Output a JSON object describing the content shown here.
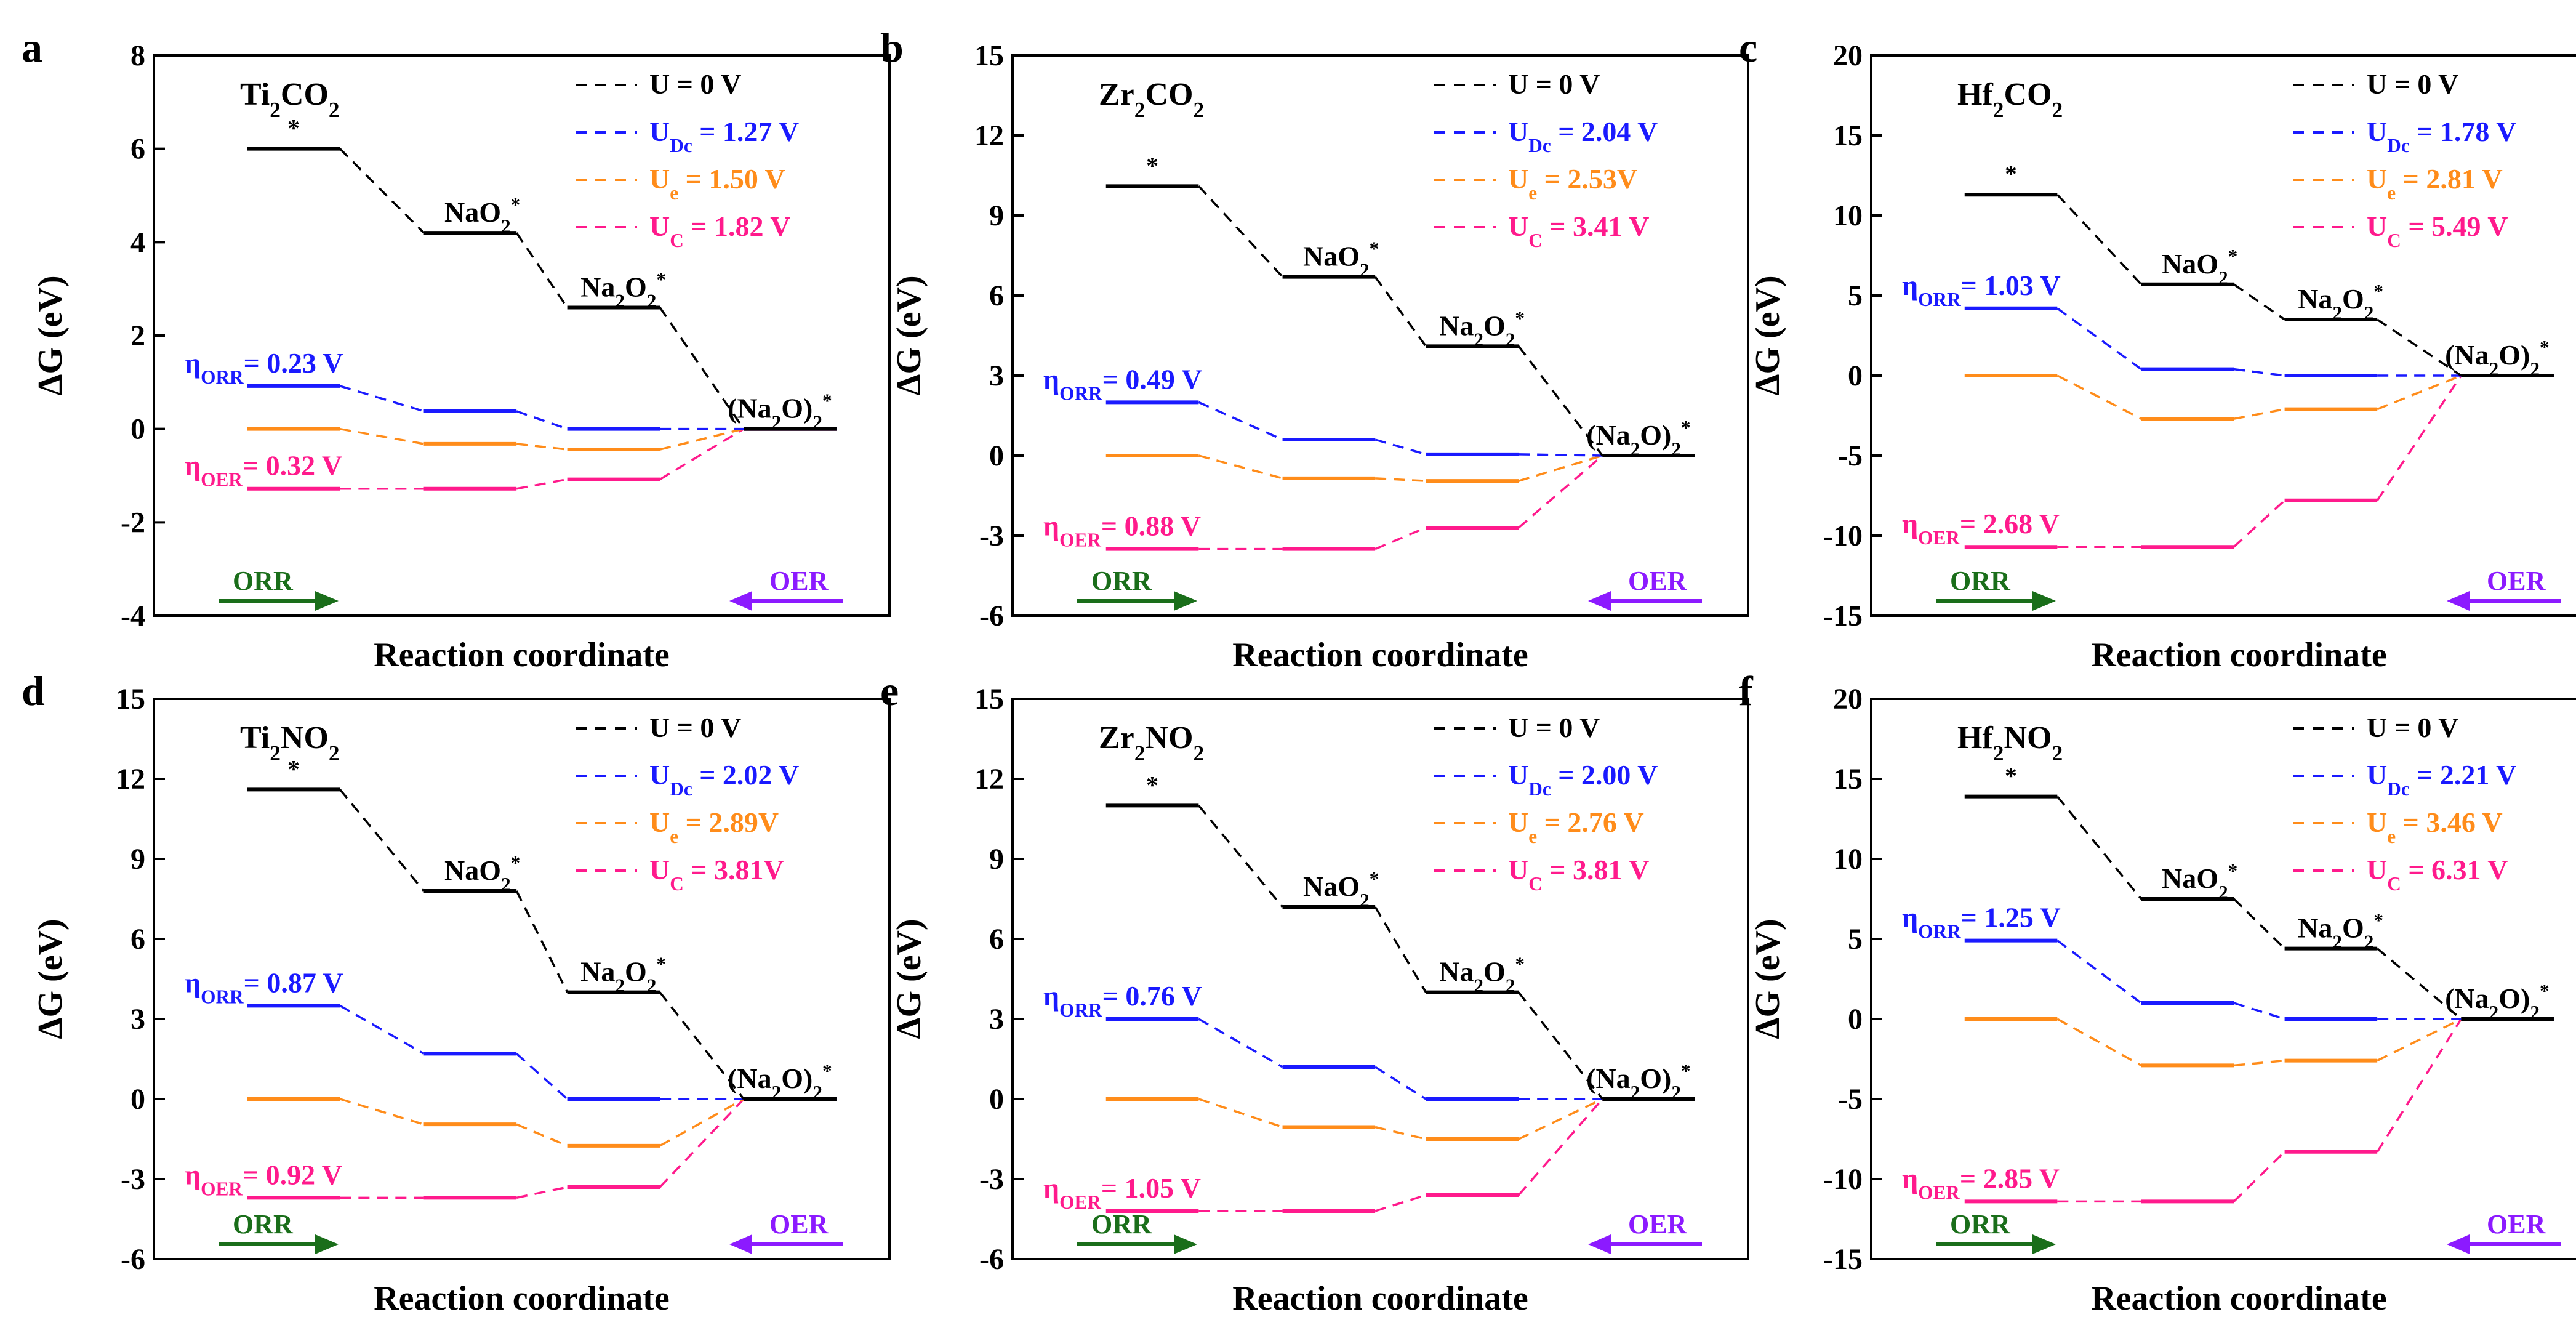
{
  "figure": {
    "xlabel": "Reaction coordinate",
    "ylabel": "ΔG (eV)",
    "state_labels": [
      "*",
      "NaO",
      "Na",
      "O",
      "(Na",
      "O)",
      "*"
    ],
    "ylabel_parts": [
      "ΔG (eV)"
    ],
    "eta_orr_prefix": "η",
    "eta_orr_sub": "ORR",
    "eta_oer_sub": "OER",
    "orr_arrow": "ORR",
    "oer_arrow": "OER",
    "colors": {
      "u0": "#000000",
      "udc": "#1a1aff",
      "ue": "#ff8c1a",
      "uc": "#ff1a8c",
      "orr": "#1a6e1a",
      "oer": "#8c1aff"
    }
  },
  "chart_data": [
    {
      "type": "line",
      "panel": "a",
      "material": {
        "base": "Ti",
        "sub1": "2",
        "mid": "CO",
        "sub2": "2"
      },
      "ylim": [
        -4,
        8
      ],
      "yticks": [
        -4,
        -2,
        0,
        2,
        4,
        6,
        8
      ],
      "xlabel": "Reaction coordinate",
      "ylabel": "ΔG (eV)",
      "categories": [
        "*",
        "NaO2*",
        "Na2O2*",
        "(Na2O)2*"
      ],
      "series": [
        {
          "name": "U = 0 V",
          "key": "u0",
          "main": "U = 0 V",
          "sub": "",
          "tail": "",
          "values": [
            6.0,
            4.2,
            2.6,
            0.0
          ]
        },
        {
          "name": "UDc = 1.27 V",
          "key": "udc",
          "main": "U",
          "sub": "Dc",
          "tail": " = 1.27 V",
          "values": [
            0.92,
            0.38,
            0.0,
            0.0
          ]
        },
        {
          "name": "Ue = 1.50 V",
          "key": "ue",
          "main": "U",
          "sub": "e",
          "tail": " = 1.50 V",
          "values": [
            0.0,
            -0.32,
            -0.44,
            0.0
          ]
        },
        {
          "name": "UC = 1.82 V",
          "key": "uc",
          "main": "U",
          "sub": "C",
          "tail": " = 1.82 V",
          "values": [
            -1.28,
            -1.28,
            -1.08,
            0.0
          ]
        }
      ],
      "eta_orr": "= 0.23 V",
      "eta_oer": "= 0.32 V"
    },
    {
      "type": "line",
      "panel": "b",
      "material": {
        "base": "Zr",
        "sub1": "2",
        "mid": "CO",
        "sub2": "2"
      },
      "ylim": [
        -6,
        15
      ],
      "yticks": [
        -6,
        -3,
        0,
        3,
        6,
        9,
        12,
        15
      ],
      "xlabel": "Reaction coordinate",
      "ylabel": "ΔG (eV)",
      "categories": [
        "*",
        "NaO2*",
        "Na2O2*",
        "(Na2O)2*"
      ],
      "series": [
        {
          "name": "U = 0 V",
          "key": "u0",
          "main": "U = 0 V",
          "sub": "",
          "tail": "",
          "values": [
            10.1,
            6.7,
            4.1,
            0.0
          ]
        },
        {
          "name": "UDc = 2.04 V",
          "key": "udc",
          "main": "U",
          "sub": "Dc",
          "tail": " = 2.04 V",
          "values": [
            2.0,
            0.6,
            0.05,
            0.0
          ]
        },
        {
          "name": "Ue = 2.53 V",
          "key": "ue",
          "main": "U",
          "sub": "e",
          "tail": " = 2.53V",
          "values": [
            0.0,
            -0.85,
            -0.95,
            0.0
          ]
        },
        {
          "name": "UC = 3.41 V",
          "key": "uc",
          "main": "U",
          "sub": "C",
          "tail": " = 3.41 V",
          "values": [
            -3.5,
            -3.5,
            -2.7,
            0.0
          ]
        }
      ],
      "eta_orr": "= 0.49 V",
      "eta_oer": "= 0.88 V"
    },
    {
      "type": "line",
      "panel": "c",
      "material": {
        "base": "Hf",
        "sub1": "2",
        "mid": "CO",
        "sub2": "2"
      },
      "ylim": [
        -15,
        20
      ],
      "yticks": [
        -15,
        -10,
        -5,
        0,
        5,
        10,
        15,
        20
      ],
      "xlabel": "Reaction coordinate",
      "ylabel": "ΔG (eV)",
      "categories": [
        "*",
        "NaO2*",
        "Na2O2*",
        "(Na2O)2*"
      ],
      "series": [
        {
          "name": "U = 0 V",
          "key": "u0",
          "main": "U = 0 V",
          "sub": "",
          "tail": "",
          "values": [
            11.3,
            5.7,
            3.5,
            0.0
          ]
        },
        {
          "name": "UDc = 1.78 V",
          "key": "udc",
          "main": "U",
          "sub": "Dc",
          "tail": " = 1.78 V",
          "values": [
            4.2,
            0.4,
            0.0,
            0.0
          ]
        },
        {
          "name": "Ue = 2.81 V",
          "key": "ue",
          "main": "U",
          "sub": "e",
          "tail": " = 2.81 V",
          "values": [
            0.0,
            -2.7,
            -2.1,
            0.0
          ]
        },
        {
          "name": "UC = 5.49 V",
          "key": "uc",
          "main": "U",
          "sub": "C",
          "tail": " = 5.49 V",
          "values": [
            -10.7,
            -10.7,
            -7.8,
            0.0
          ]
        }
      ],
      "eta_orr": "= 1.03 V",
      "eta_oer": "= 2.68  V"
    },
    {
      "type": "line",
      "panel": "d",
      "material": {
        "base": "Ti",
        "sub1": "2",
        "mid": "NO",
        "sub2": "2"
      },
      "ylim": [
        -6,
        15
      ],
      "yticks": [
        -6,
        -3,
        0,
        3,
        6,
        9,
        12,
        15
      ],
      "xlabel": "Reaction coordinate",
      "ylabel": "ΔG (eV)",
      "categories": [
        "*",
        "NaO2*",
        "Na2O2*",
        "(Na2O)2*"
      ],
      "series": [
        {
          "name": "U = 0 V",
          "key": "u0",
          "main": "U = 0 V",
          "sub": "",
          "tail": "",
          "values": [
            11.6,
            7.8,
            4.0,
            0.0
          ]
        },
        {
          "name": "UDc = 2.02 V",
          "key": "udc",
          "main": "U",
          "sub": "Dc",
          "tail": " = 2.02 V",
          "values": [
            3.5,
            1.7,
            0.0,
            0.0
          ]
        },
        {
          "name": "Ue = 2.89V",
          "key": "ue",
          "main": "U",
          "sub": "e",
          "tail": " = 2.89V",
          "values": [
            0.0,
            -0.95,
            -1.75,
            0.0
          ]
        },
        {
          "name": "UC = 3.81V",
          "key": "uc",
          "main": "U",
          "sub": "C",
          "tail": " = 3.81V",
          "values": [
            -3.7,
            -3.7,
            -3.3,
            0.0
          ]
        }
      ],
      "eta_orr": "= 0.87 V",
      "eta_oer": "= 0.92 V"
    },
    {
      "type": "line",
      "panel": "e",
      "material": {
        "base": "Zr",
        "sub1": "2",
        "mid": "NO",
        "sub2": "2"
      },
      "ylim": [
        -6,
        15
      ],
      "yticks": [
        -6,
        -3,
        0,
        3,
        6,
        9,
        12,
        15
      ],
      "xlabel": "Reaction coordinate",
      "ylabel": "ΔG (eV)",
      "categories": [
        "*",
        "NaO2*",
        "Na2O2*",
        "(Na2O)2*"
      ],
      "series": [
        {
          "name": "U = 0 V",
          "key": "u0",
          "main": "U = 0 V",
          "sub": "",
          "tail": "",
          "values": [
            11.0,
            7.2,
            4.0,
            0.0
          ]
        },
        {
          "name": "UDc = 2.00 V",
          "key": "udc",
          "main": "U",
          "sub": "Dc",
          "tail": " = 2.00 V",
          "values": [
            3.0,
            1.2,
            0.0,
            0.0
          ]
        },
        {
          "name": "Ue = 2.76 V",
          "key": "ue",
          "main": "U",
          "sub": "e",
          "tail": " = 2.76 V",
          "values": [
            0.0,
            -1.05,
            -1.5,
            0.0
          ]
        },
        {
          "name": "UC = 3.81 V",
          "key": "uc",
          "main": "U",
          "sub": "C",
          "tail": " = 3.81 V",
          "values": [
            -4.2,
            -4.2,
            -3.6,
            0.0
          ]
        }
      ],
      "eta_orr": "= 0.76 V",
      "eta_oer": "= 1.05 V"
    },
    {
      "type": "line",
      "panel": "f",
      "material": {
        "base": "Hf",
        "sub1": "2",
        "mid": "NO",
        "sub2": "2"
      },
      "ylim": [
        -15,
        20
      ],
      "yticks": [
        -15,
        -10,
        -5,
        0,
        5,
        10,
        15,
        20
      ],
      "xlabel": "Reaction coordinate",
      "ylabel": "ΔG (eV)",
      "categories": [
        "*",
        "NaO2*",
        "Na2O2*",
        "(Na2O)2*"
      ],
      "series": [
        {
          "name": "U = 0 V",
          "key": "u0",
          "main": "U = 0 V",
          "sub": "",
          "tail": "",
          "values": [
            13.9,
            7.5,
            4.4,
            0.0
          ]
        },
        {
          "name": "UDc = 2.21 V",
          "key": "udc",
          "main": "U",
          "sub": "Dc",
          "tail": " = 2.21 V",
          "values": [
            4.9,
            1.0,
            0.0,
            0.0
          ]
        },
        {
          "name": "Ue = 3.46 V",
          "key": "ue",
          "main": "U",
          "sub": "e",
          "tail": " = 3.46 V",
          "values": [
            0.0,
            -2.9,
            -2.6,
            0.0
          ]
        },
        {
          "name": "UC = 6.31 V",
          "key": "uc",
          "main": "U",
          "sub": "C",
          "tail": " = 6.31 V",
          "values": [
            -11.4,
            -11.4,
            -8.3,
            0.0
          ]
        }
      ],
      "eta_orr": "= 1.25 V",
      "eta_oer": "= 2.85 V"
    }
  ]
}
